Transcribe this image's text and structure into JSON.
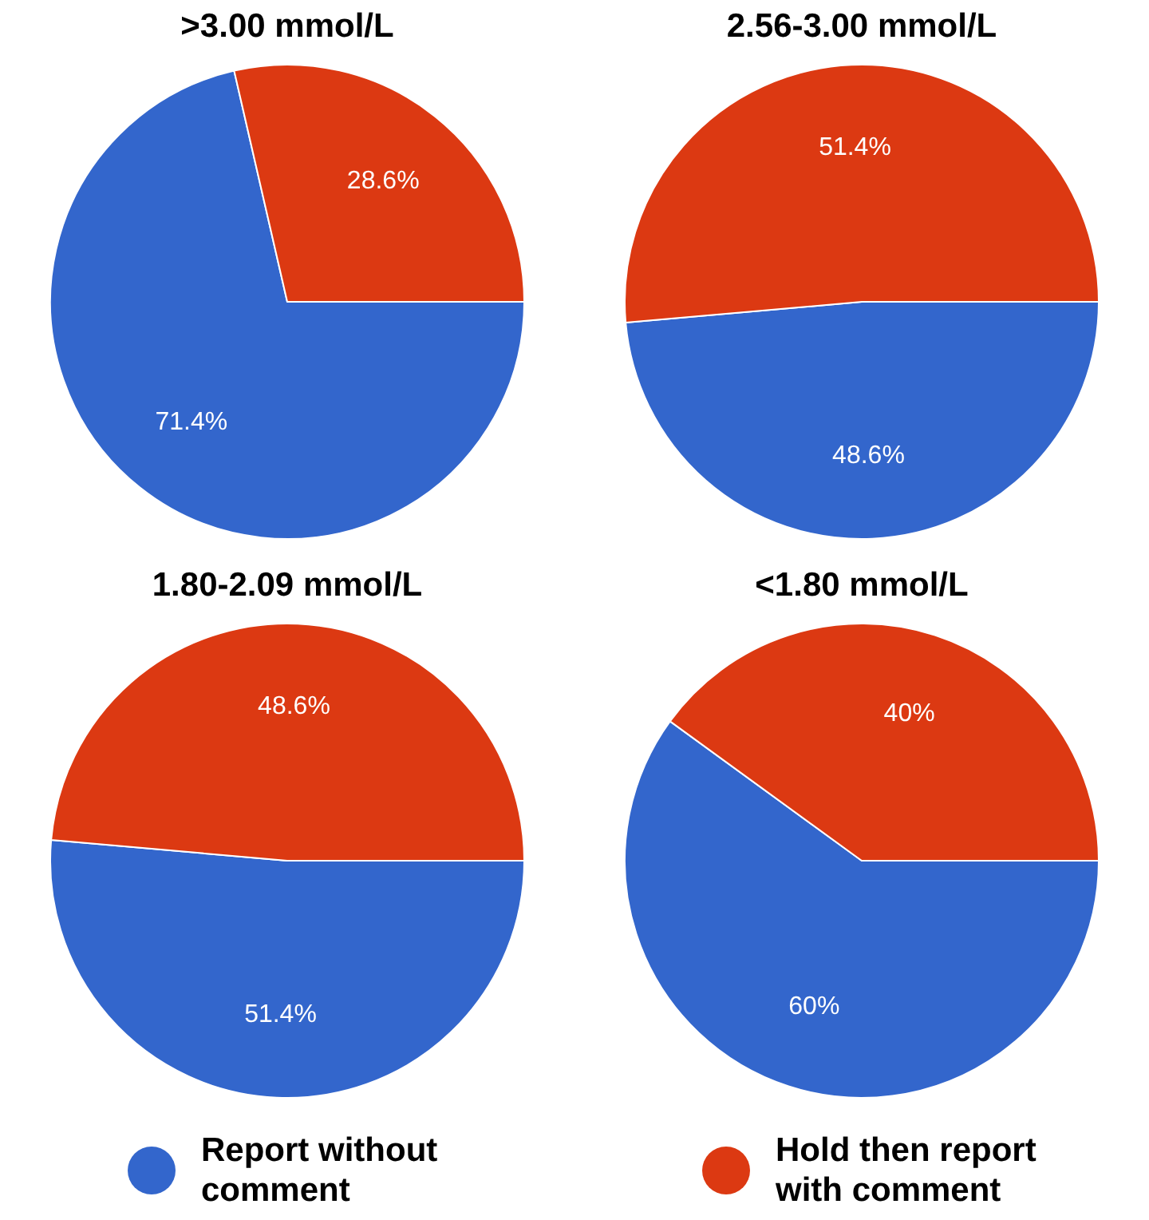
{
  "chart_data": [
    {
      "type": "pie",
      "title": ">3.00 mmol/L",
      "categories": [
        "Report without comment",
        "Hold then report with comment"
      ],
      "values": [
        71.4,
        28.6
      ],
      "colors": [
        "#3366cc",
        "#dc3912"
      ],
      "value_labels": [
        "71.4%",
        "28.6%"
      ],
      "legend": "bottom"
    },
    {
      "type": "pie",
      "title": "2.56-3.00 mmol/L",
      "categories": [
        null,
        null
      ],
      "values": [
        48.6,
        51.4
      ],
      "colors": [
        "#3366cc",
        "#dc3912"
      ],
      "value_labels": [
        "48.6%",
        "51.4%"
      ]
    },
    {
      "type": "pie",
      "title": "1.80-2.09 mmol/L",
      "categories": [
        null,
        null
      ],
      "values": [
        51.4,
        48.6
      ],
      "colors": [
        "#3366cc",
        "#dc3912"
      ],
      "value_labels": [
        "51.4%",
        "48.6%"
      ]
    },
    {
      "type": "pie",
      "title": "<1.80 mmol/L",
      "categories": [
        null,
        null
      ],
      "values": [
        60,
        40
      ],
      "colors": [
        "#3366cc",
        "#dc3912"
      ],
      "value_labels": [
        "60%",
        "40%"
      ]
    }
  ]
}
